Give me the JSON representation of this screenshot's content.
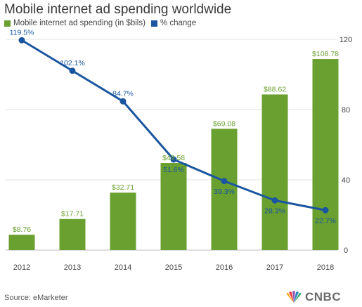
{
  "header": {
    "title": "Mobile internet ad spending worldwide"
  },
  "legend": {
    "bars_label": "Mobile internet ad spending (in $bils)",
    "line_label": "% change"
  },
  "footer": {
    "source": "Source: eMarketer",
    "brand": "CNBC"
  },
  "colors": {
    "bar": "#6aa02f",
    "line": "#1a56a0",
    "grid": "#e3e3e3"
  },
  "chart_data": {
    "type": "bar",
    "title": "Mobile internet ad spending worldwide",
    "categories": [
      "2012",
      "2013",
      "2014",
      "2015",
      "2016",
      "2017",
      "2018"
    ],
    "series": [
      {
        "name": "Mobile internet ad spending (in $bils)",
        "type": "bar",
        "values": [
          8.76,
          17.71,
          32.71,
          49.58,
          69.08,
          88.62,
          108.78
        ],
        "labels": [
          "$8.76",
          "$17.71",
          "$32.71",
          "$49.58",
          "$69.08",
          "$88.62",
          "$108.78"
        ]
      },
      {
        "name": "% change",
        "type": "line",
        "values": [
          119.5,
          102.1,
          84.7,
          51.6,
          39.3,
          28.3,
          22.7
        ],
        "labels": [
          "119.5%",
          "102.1%",
          "84.7%",
          "51.6%",
          "39.3%",
          "28.3%",
          "22.7%"
        ]
      }
    ],
    "y_axis": {
      "position": "right",
      "ticks": [
        "0",
        "40",
        "80",
        "120"
      ],
      "ylim": [
        0,
        120
      ]
    },
    "grid": true,
    "legend_position": "top-left"
  }
}
